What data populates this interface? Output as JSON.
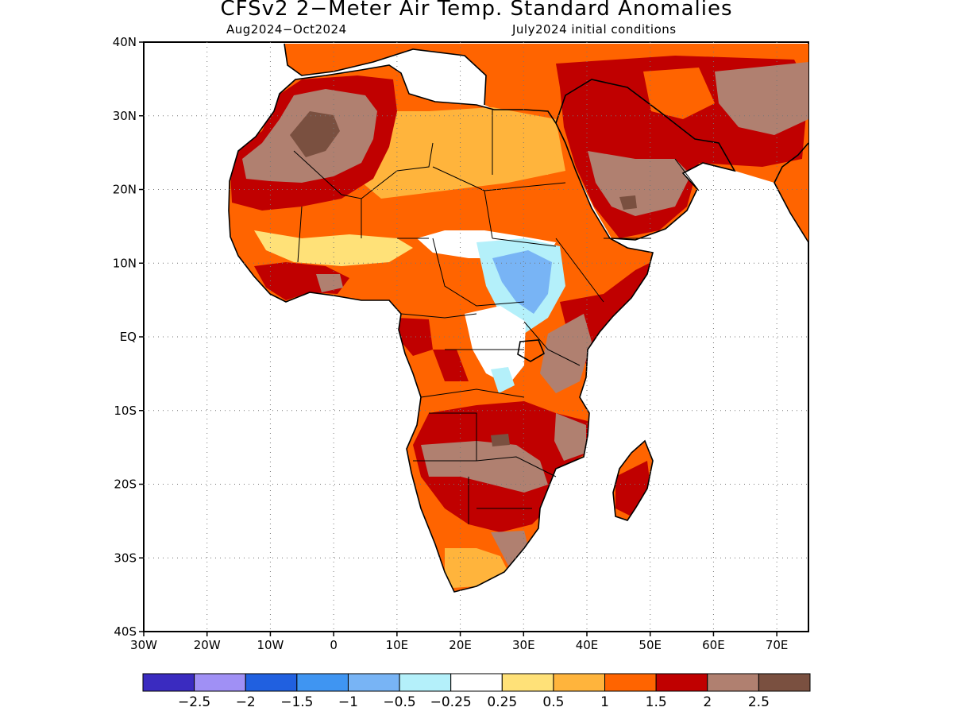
{
  "title": "CFSv2 2−Meter Air Temp. Standard Anomalies",
  "subtitle_left": "Aug2024−Oct2024",
  "subtitle_right": "July2024 initial conditions",
  "map": {
    "lon_range": [
      -30,
      75
    ],
    "lat_range": [
      -40,
      40
    ],
    "lat_ticks": [
      {
        "value": 40,
        "label": "40N"
      },
      {
        "value": 30,
        "label": "30N"
      },
      {
        "value": 20,
        "label": "20N"
      },
      {
        "value": 10,
        "label": "10N"
      },
      {
        "value": 0,
        "label": "EQ"
      },
      {
        "value": -10,
        "label": "10S"
      },
      {
        "value": -20,
        "label": "20S"
      },
      {
        "value": -30,
        "label": "30S"
      },
      {
        "value": -40,
        "label": "40S"
      }
    ],
    "lon_ticks": [
      {
        "value": -30,
        "label": "30W"
      },
      {
        "value": -20,
        "label": "20W"
      },
      {
        "value": -10,
        "label": "10W"
      },
      {
        "value": 0,
        "label": "0"
      },
      {
        "value": 10,
        "label": "10E"
      },
      {
        "value": 20,
        "label": "20E"
      },
      {
        "value": 30,
        "label": "30E"
      },
      {
        "value": 40,
        "label": "40E"
      },
      {
        "value": 50,
        "label": "50E"
      },
      {
        "value": 60,
        "label": "60E"
      },
      {
        "value": 70,
        "label": "70E"
      }
    ],
    "grid": "dotted",
    "anomaly_regions": [
      {
        "name": "sahara-west",
        "color": "#c00000"
      },
      {
        "name": "sahara-core",
        "color": "#b08070"
      },
      {
        "name": "egypt-libya",
        "color": "#ffb43c"
      },
      {
        "name": "arabia",
        "color": "#c00000"
      },
      {
        "name": "east-africa-cool",
        "color": "#78b4f5"
      },
      {
        "name": "southern-africa",
        "color": "#c00000"
      }
    ]
  },
  "colorbar": {
    "colors": [
      "#3a2bc0",
      "#a090f5",
      "#2060e0",
      "#3f95f2",
      "#78b4f5",
      "#b4f0fa",
      "#ffffff",
      "#ffe178",
      "#ffb43c",
      "#ff6400",
      "#c00000",
      "#b08070",
      "#7a5040"
    ],
    "labels": [
      "−2.5",
      "−2",
      "−1.5",
      "−1",
      "−0.5",
      "−0.25",
      "0.25",
      "0.5",
      "1",
      "1.5",
      "2",
      "2.5"
    ]
  }
}
